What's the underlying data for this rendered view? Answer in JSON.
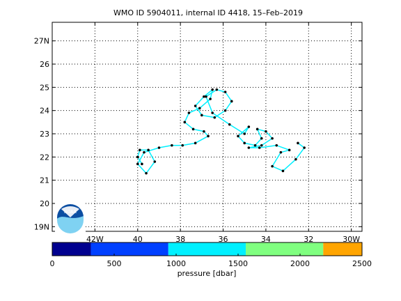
{
  "chart_data": {
    "type": "line",
    "title": "WMO ID 5904011, internal ID 4418, 15–Feb–2019",
    "xlim": [
      -44.0,
      -29.5
    ],
    "ylim": [
      18.8,
      27.8
    ],
    "grid": true,
    "x_ticks": [
      {
        "value": -42,
        "label": "42W"
      },
      {
        "value": -40,
        "label": "40"
      },
      {
        "value": -38,
        "label": "38"
      },
      {
        "value": -36,
        "label": "36"
      },
      {
        "value": -34,
        "label": "34"
      },
      {
        "value": -32,
        "label": "32"
      },
      {
        "value": -30,
        "label": "30W"
      }
    ],
    "y_ticks": [
      {
        "value": 19,
        "label": "19N"
      },
      {
        "value": 20,
        "label": "20"
      },
      {
        "value": 21,
        "label": "21"
      },
      {
        "value": 22,
        "label": "22"
      },
      {
        "value": 23,
        "label": "23"
      },
      {
        "value": 24,
        "label": "24"
      },
      {
        "value": 25,
        "label": "25"
      },
      {
        "value": 26,
        "label": "26"
      },
      {
        "value": 27,
        "label": "27N"
      }
    ],
    "track": {
      "lon": [
        -39.8,
        -40.0,
        -39.9,
        -39.5,
        -39.2,
        -39.6,
        -40.0,
        -39.7,
        -39.0,
        -38.4,
        -37.9,
        -37.3,
        -36.7,
        -36.9,
        -37.4,
        -37.8,
        -37.6,
        -37.1,
        -36.6,
        -36.5,
        -36.9,
        -37.3,
        -37.0,
        -36.4,
        -35.9,
        -35.6,
        -35.9,
        -36.3,
        -36.8,
        -36.5,
        -35.7,
        -35.0,
        -34.8,
        -35.3,
        -35.0,
        -34.5,
        -34.2,
        -34.4,
        -34.0,
        -33.7,
        -34.2,
        -34.8,
        -34.3,
        -33.5,
        -32.9,
        -33.3,
        -33.7,
        -33.2,
        -32.6,
        -32.2,
        -32.5
      ],
      "lat": [
        21.7,
        22.0,
        22.3,
        22.3,
        21.8,
        21.3,
        21.7,
        22.2,
        22.4,
        22.5,
        22.5,
        22.6,
        22.9,
        23.1,
        23.2,
        23.5,
        23.9,
        24.1,
        24.5,
        24.9,
        24.6,
        24.2,
        23.8,
        23.7,
        24.0,
        24.4,
        24.8,
        24.9,
        24.6,
        23.9,
        23.4,
        23.0,
        23.3,
        22.9,
        22.6,
        22.5,
        22.8,
        23.2,
        23.1,
        22.8,
        22.5,
        22.4,
        22.4,
        22.5,
        22.3,
        22.2,
        21.6,
        21.4,
        21.9,
        22.4,
        22.6
      ],
      "pressure_dbar": [
        1000,
        1000,
        1000,
        1000,
        1000,
        1000,
        1000,
        1000,
        1000,
        1000,
        1000,
        1000,
        1000,
        1000,
        1000,
        1000,
        1000,
        1000,
        1000,
        1000,
        1000,
        1000,
        1000,
        1000,
        1000,
        1000,
        1000,
        1000,
        1000,
        1000,
        1000,
        1000,
        1000,
        1000,
        1000,
        1000,
        1000,
        1000,
        1000,
        1000,
        1000,
        1000,
        1000,
        1000,
        1000,
        1000,
        1000,
        1000,
        1000,
        1000,
        1000
      ]
    },
    "colorbar": {
      "label": "pressure [dbar]",
      "range": [
        0,
        2500
      ],
      "tick_values": [
        0,
        500,
        1000,
        1500,
        2000,
        2500
      ],
      "tick_labels": [
        "0",
        "500",
        "1000",
        "1500",
        "2000",
        "2500"
      ],
      "bins": [
        {
          "from": 0,
          "to": 312,
          "color": "#00008f"
        },
        {
          "from": 312,
          "to": 937,
          "color": "#0040ff"
        },
        {
          "from": 937,
          "to": 1562,
          "color": "#00f0ff"
        },
        {
          "from": 1562,
          "to": 2187,
          "color": "#80ff80"
        },
        {
          "from": 2187,
          "to": 2500,
          "color": "#ffa500"
        }
      ]
    },
    "logo_text": "NOAA"
  }
}
